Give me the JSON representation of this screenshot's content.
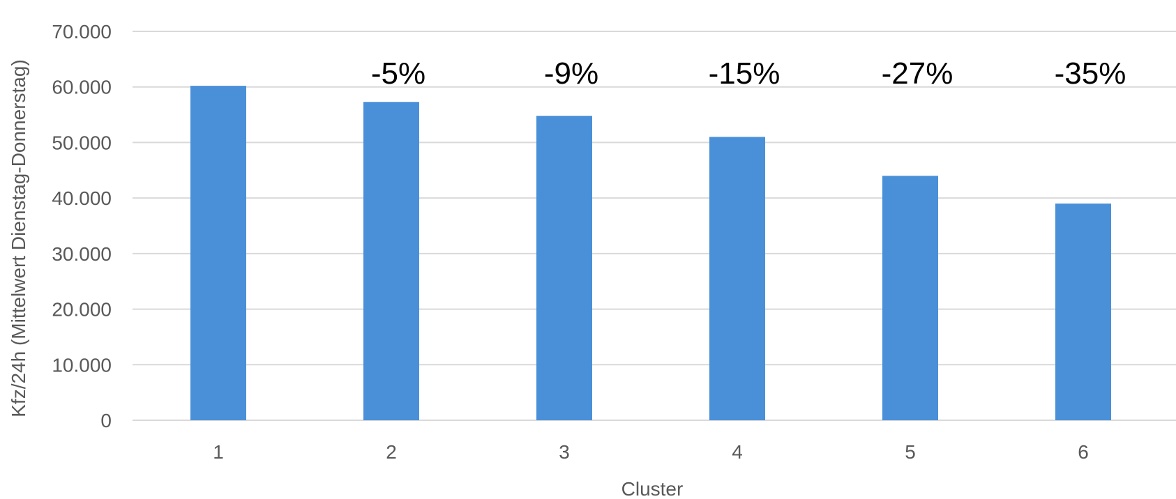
{
  "chart_data": {
    "type": "bar",
    "title": "",
    "xlabel": "Cluster",
    "ylabel": "Kfz/24h (Mittelwert Dienstag-Donnerstag)",
    "ylim": [
      0,
      70000
    ],
    "yticks": [
      "0",
      "10.000",
      "20.000",
      "30.000",
      "40.000",
      "50.000",
      "60.000",
      "70.000"
    ],
    "categories": [
      "1",
      "2",
      "3",
      "4",
      "5",
      "6"
    ],
    "values": [
      60200,
      57300,
      54800,
      51000,
      44000,
      39000
    ],
    "data_labels": [
      "",
      "-5%",
      "-9%",
      "-15%",
      "-27%",
      "-35%"
    ],
    "grid": true,
    "bar_color": "#4a90d9"
  }
}
